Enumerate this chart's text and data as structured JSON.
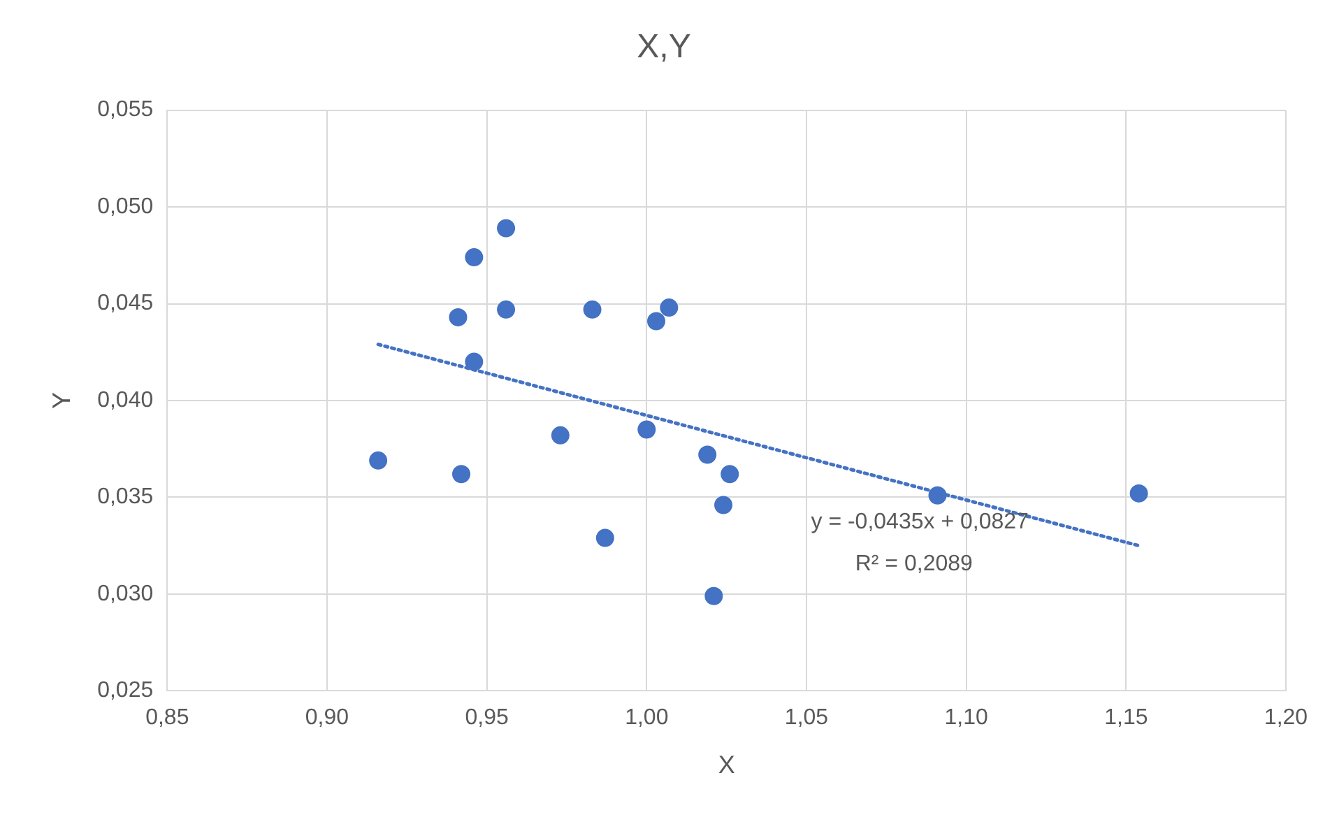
{
  "chart_data": {
    "type": "scatter",
    "title": "X,Y",
    "xlabel": "X",
    "ylabel": "Y",
    "xlim": [
      0.85,
      1.2
    ],
    "ylim": [
      0.025,
      0.055
    ],
    "xticks": [
      {
        "value": 0.85,
        "label": "0,85"
      },
      {
        "value": 0.9,
        "label": "0,90"
      },
      {
        "value": 0.95,
        "label": "0,95"
      },
      {
        "value": 1.0,
        "label": "1,00"
      },
      {
        "value": 1.05,
        "label": "1,05"
      },
      {
        "value": 1.1,
        "label": "1,10"
      },
      {
        "value": 1.15,
        "label": "1,15"
      },
      {
        "value": 1.2,
        "label": "1,20"
      }
    ],
    "yticks": [
      {
        "value": 0.025,
        "label": "0,025"
      },
      {
        "value": 0.03,
        "label": "0,030"
      },
      {
        "value": 0.035,
        "label": "0,035"
      },
      {
        "value": 0.04,
        "label": "0,040"
      },
      {
        "value": 0.045,
        "label": "0,045"
      },
      {
        "value": 0.05,
        "label": "0,050"
      },
      {
        "value": 0.055,
        "label": "0,055"
      }
    ],
    "grid": true,
    "series": [
      {
        "marker": "circle",
        "color": "#4472c4",
        "x": [
          0.916,
          0.942,
          0.941,
          0.946,
          0.946,
          0.956,
          0.956,
          0.973,
          0.983,
          0.987,
          1.0,
          1.003,
          1.007,
          1.019,
          1.021,
          1.024,
          1.026,
          1.091,
          1.154
        ],
        "values": [
          0.0369,
          0.0362,
          0.0443,
          0.0474,
          0.042,
          0.0489,
          0.0447,
          0.0382,
          0.0447,
          0.0329,
          0.0385,
          0.0441,
          0.0448,
          0.0372,
          0.0299,
          0.0346,
          0.0362,
          0.0351,
          0.0352
        ]
      },
      {
        "type": "line",
        "marker": "none",
        "color": "#4472c4",
        "line_style": "dotted",
        "x": [
          0.916,
          1.154
        ],
        "values": [
          0.0429,
          0.0325
        ]
      }
    ],
    "annotations": [
      "y = -0,0435x + 0,0827",
      "R² = 0,2089"
    ]
  }
}
